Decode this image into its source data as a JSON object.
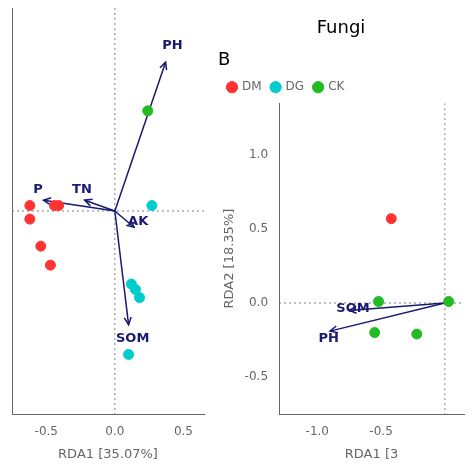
{
  "chart_data": [
    {
      "type": "scatter",
      "xlabel": "RDA1 [35.07%]",
      "xlim": [
        -0.75,
        0.65
      ],
      "ylim": [
        -0.75,
        0.75
      ],
      "xticks": [
        -0.5,
        {
          "value": 0,
          "label": "0.0"
        },
        0.5
      ],
      "yticks": [],
      "tick_labels": "x",
      "grid": false,
      "hlines": [
        0
      ],
      "vlines": [
        0
      ],
      "series": [
        {
          "name": "DM",
          "color": "#FF3333",
          "values": [
            [
              -0.62,
              0.02
            ],
            [
              -0.62,
              -0.03
            ],
            [
              -0.54,
              -0.13
            ],
            [
              -0.47,
              -0.2
            ],
            [
              -0.44,
              0.02
            ],
            [
              -0.41,
              0.02
            ]
          ]
        },
        {
          "name": "DG",
          "color": "#00CCCC",
          "values": [
            [
              0.27,
              0.02
            ],
            [
              0.12,
              -0.27
            ],
            [
              0.15,
              -0.29
            ],
            [
              0.18,
              -0.32
            ],
            [
              0.1,
              -0.53
            ]
          ]
        },
        {
          "name": "CK",
          "color": "#22BB22",
          "values": [
            [
              0.24,
              0.37
            ]
          ]
        }
      ],
      "annotations": [
        {
          "text": "PH",
          "x": 0.42,
          "y": 0.61,
          "color": "#191970",
          "arrow": {
            "x0": 0,
            "y0": 0,
            "x1": 0.37,
            "y1": 0.55
          }
        },
        {
          "text": "TN",
          "x": -0.24,
          "y": 0.08,
          "color": "#191970",
          "arrow": {
            "x0": 0,
            "y0": 0,
            "x1": -0.22,
            "y1": 0.04
          }
        },
        {
          "text": "AK",
          "x": 0.17,
          "y": -0.04,
          "color": "#191970",
          "arrow": {
            "x0": 0,
            "y0": 0,
            "x1": 0.14,
            "y1": -0.06
          }
        },
        {
          "text": "SOM",
          "x": 0.13,
          "y": -0.47,
          "color": "#191970",
          "arrow": {
            "x0": 0,
            "y0": 0,
            "x1": 0.1,
            "y1": -0.42
          }
        },
        {
          "text": "P",
          "x": -0.56,
          "y": 0.08,
          "color": "#191970",
          "arrow": {
            "x0": 0,
            "y0": 0,
            "x1": -0.52,
            "y1": 0.04
          }
        }
      ]
    },
    {
      "type": "scatter",
      "title": "Fungi",
      "subtitle": "B",
      "xlabel": "RDA1 [3",
      "ylabel": "RDA2 [18.35%]",
      "xlim": [
        -1.3,
        0.15
      ],
      "ylim": [
        -0.75,
        1.35
      ],
      "xticks": [
        {
          "value": -1.0,
          "label": "-1.0"
        },
        -0.5
      ],
      "yticks": [
        -0.5,
        {
          "value": 0,
          "label": "0.0"
        },
        0.5,
        {
          "value": 1.0,
          "label": "1.0"
        }
      ],
      "grid": false,
      "legend": "upper left",
      "hlines": [
        0
      ],
      "vlines": [
        0
      ],
      "series": [
        {
          "name": "DM",
          "color": "#FF3333",
          "values": [
            [
              -0.42,
              0.57
            ]
          ]
        },
        {
          "name": "DG",
          "color": "#00CCCC",
          "values": []
        },
        {
          "name": "CK",
          "color": "#22BB22",
          "values": [
            [
              -0.52,
              0.01
            ],
            [
              -0.55,
              -0.2
            ],
            [
              -0.22,
              -0.21
            ],
            [
              0.03,
              0.01
            ]
          ]
        }
      ],
      "annotations": [
        {
          "text": "SOM",
          "x": -0.72,
          "y": -0.04,
          "color": "#191970",
          "arrow": {
            "x0": 0,
            "y0": 0,
            "x1": -0.75,
            "y1": -0.05
          }
        },
        {
          "text": "PH",
          "x": -0.91,
          "y": -0.24,
          "color": "#191970",
          "arrow": {
            "x0": 0,
            "y0": 0,
            "x1": -0.9,
            "y1": -0.19
          }
        }
      ]
    }
  ]
}
